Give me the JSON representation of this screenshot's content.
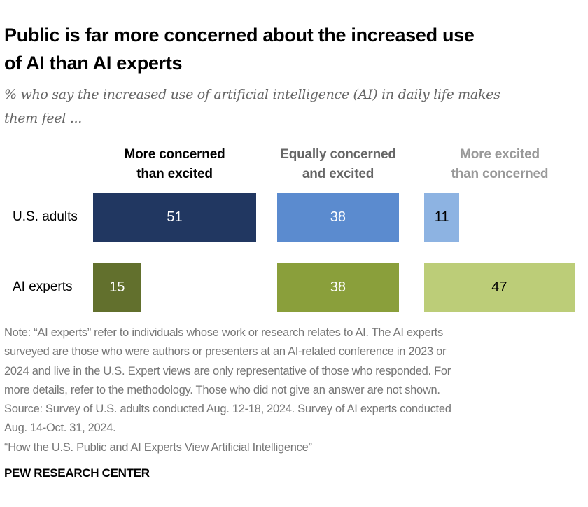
{
  "title_lines": [
    "Public is far more concerned about the increased use",
    "of AI than AI experts"
  ],
  "subtitle_lines": [
    "% who say the increased use of artificial intelligence (AI) in daily life makes",
    "them feel ..."
  ],
  "chart_data": {
    "type": "bar",
    "categories": [
      "More concerned than excited",
      "Equally concerned and excited",
      "More excited than concerned"
    ],
    "category_lines": [
      [
        "More concerned",
        "than excited"
      ],
      [
        "Equally concerned",
        "and excited"
      ],
      [
        "More excited",
        "than concerned"
      ]
    ],
    "category_header_colors": [
      "#000000",
      "#666666",
      "#999999"
    ],
    "series": [
      {
        "name": "U.S. adults",
        "values": [
          51,
          38,
          11
        ],
        "colors": [
          "#213761",
          "#5b8bcf",
          "#8db3e2"
        ],
        "label_colors": [
          "#ffffff",
          "#ffffff",
          "#000000"
        ]
      },
      {
        "name": "AI experts",
        "values": [
          15,
          38,
          47
        ],
        "colors": [
          "#62702d",
          "#8a9f3b",
          "#bccd78"
        ],
        "label_colors": [
          "#ffffff",
          "#ffffff",
          "#000000"
        ]
      }
    ],
    "ylim": [
      0,
      100
    ],
    "grid": false
  },
  "notes": [
    "Note: “AI experts” refer to individuals whose work or research relates to AI. The AI experts",
    "surveyed are those who were authors or presenters at an AI-related conference in 2023 or",
    "2024 and live in the U.S. Expert views are only representative of those who responded. For",
    "more details, refer to the methodology. Those who did not give an answer are not shown.",
    "Source: Survey of U.S. adults conducted Aug. 12-18, 2024. Survey of AI experts conducted",
    "Aug. 14-Oct. 31, 2024.",
    "“How the U.S. Public and AI Experts View Artificial Intelligence”"
  ],
  "logo": "PEW RESEARCH CENTER"
}
